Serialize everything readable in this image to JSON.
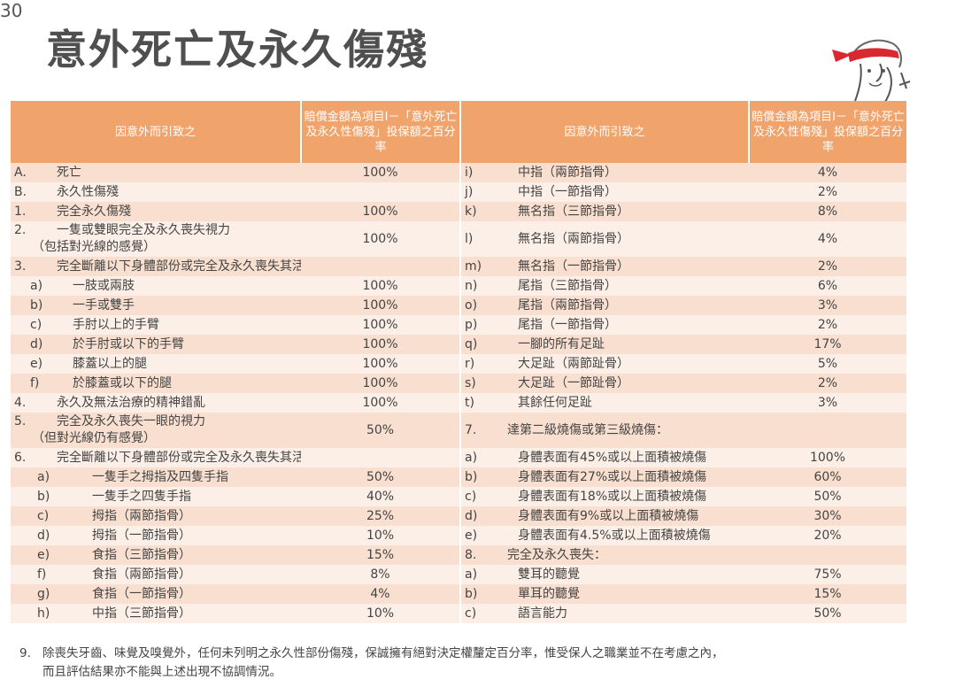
{
  "page_number": "30",
  "title": "意外死亡及永久傷殘",
  "header": {
    "col1": "因意外而引致之",
    "col2": "賠償金額為項目I－「意外死亡及永久性傷殘」投保額之百分率",
    "col3": "因意外而引致之",
    "col4": "賠償金額為項目I－「意外死亡及永久性傷殘」投保額之百分率"
  },
  "rows": [
    {
      "lm": "A.",
      "lt": "死亡",
      "lp": "100%",
      "rm": "i)",
      "rt": "中指（兩節指骨）",
      "rp": "4%"
    },
    {
      "lm": "B.",
      "lt": "永久性傷殘",
      "lp": "",
      "rm": "j)",
      "rt": "中指（一節指骨）",
      "rp": "2%"
    },
    {
      "lm": "1.",
      "lt": "完全永久傷殘",
      "lp": "100%",
      "rm": "k)",
      "rt": "無名指（三節指骨）",
      "rp": "8%"
    },
    {
      "lm": "2.",
      "lt": "一隻或雙眼完全及永久喪失視力",
      "lt2": "（包括對光線的感覺）",
      "lp": "100%",
      "rm": "l)",
      "rt": "無名指（兩節指骨）",
      "rp": "4%"
    },
    {
      "lm": "3.",
      "lt": "完全斷離以下身體部份或完全及永久喪失其活動能力：",
      "lp": "",
      "rm": "m)",
      "rt": "無名指（一節指骨）",
      "rp": "2%"
    },
    {
      "lm": "a)",
      "lt": "一肢或兩肢",
      "lp": "100%",
      "rm": "n)",
      "rt": "尾指（三節指骨）",
      "rp": "6%"
    },
    {
      "lm": "b)",
      "lt": "一手或雙手",
      "lp": "100%",
      "rm": "o)",
      "rt": "尾指（兩節指骨）",
      "rp": "3%"
    },
    {
      "lm": "c)",
      "lt": "手肘以上的手臂",
      "lp": "100%",
      "rm": "p)",
      "rt": "尾指（一節指骨）",
      "rp": "2%"
    },
    {
      "lm": "d)",
      "lt": "於手肘或以下的手臂",
      "lp": "100%",
      "rm": "q)",
      "rt": "一腳的所有足趾",
      "rp": "17%"
    },
    {
      "lm": "e)",
      "lt": "膝蓋以上的腿",
      "lp": "100%",
      "rm": "r)",
      "rt": "大足趾（兩節趾骨）",
      "rp": "5%"
    },
    {
      "lm": "f)",
      "lt": "於膝蓋或以下的腿",
      "lp": "100%",
      "rm": "s)",
      "rt": "大足趾（一節趾骨）",
      "rp": "2%"
    },
    {
      "lm": "4.",
      "lt": "永久及無法治療的精神錯亂",
      "lp": "100%",
      "rm": "t)",
      "rt": "其餘任何足趾",
      "rp": "3%"
    },
    {
      "lm": "5.",
      "lt": "完全及永久喪失一眼的視力",
      "lt2": "（但對光線仍有感覺）",
      "lp": "50%",
      "rm": "7.",
      "rt": "達第二級燒傷或第三級燒傷：",
      "rp": ""
    },
    {
      "lm": "6.",
      "lt": "完全斷離以下身體部份或完全及永久喪失其活動能力：",
      "lp": "",
      "rm": "a)",
      "rt": "身體表面有45%或以上面積被燒傷",
      "rp": "100%"
    },
    {
      "lm": "a)",
      "lt": "一隻手之拇指及四隻手指",
      "lp": "50%",
      "rm": "b)",
      "rt": "身體表面有27%或以上面積被燒傷",
      "rp": "60%"
    },
    {
      "lm": "b)",
      "lt": "一隻手之四隻手指",
      "lp": "40%",
      "rm": "c)",
      "rt": "身體表面有18%或以上面積被燒傷",
      "rp": "50%"
    },
    {
      "lm": "c)",
      "lt": "拇指（兩節指骨）",
      "lp": "25%",
      "rm": "d)",
      "rt": "身體表面有9%或以上面積被燒傷",
      "rp": "30%"
    },
    {
      "lm": "d)",
      "lt": "拇指（一節指骨）",
      "lp": "10%",
      "rm": "e)",
      "rt": "身體表面有4.5%或以上面積被燒傷",
      "rp": "20%"
    },
    {
      "lm": "e)",
      "lt": "食指（三節指骨）",
      "lp": "15%",
      "rm": "8.",
      "rt": "完全及永久喪失：",
      "rp": ""
    },
    {
      "lm": "f)",
      "lt": "食指（兩節指骨）",
      "lp": "8%",
      "rm": "a)",
      "rt": "雙耳的聽覺",
      "rp": "75%"
    },
    {
      "lm": "g)",
      "lt": "食指（一節指骨）",
      "lp": "4%",
      "rm": "b)",
      "rt": "單耳的聽覺",
      "rp": "15%"
    },
    {
      "lm": "h)",
      "lt": "中指（三節指骨）",
      "lp": "10%",
      "rm": "c)",
      "rt": "語言能力",
      "rp": "50%"
    }
  ],
  "footnote": {
    "num": "9.",
    "line1": "除喪失牙齒、味覺及嗅覺外，任何未列明之永久性部份傷殘，保誠擁有絕對決定權釐定百分率，惟受保人之職業並不在考慮之內，",
    "line2": "而且評估結果亦不能與上述出現不協調情況。"
  }
}
